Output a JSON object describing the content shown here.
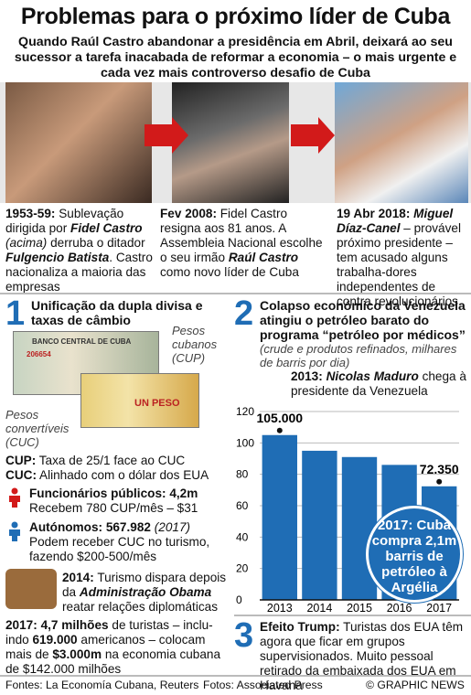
{
  "title": "Problemas para o próximo líder de Cuba",
  "subtitle": "Quando Raúl Castro abandonar a presidência em Abril, deixará ao seu sucessor a tarefa inacabada de reformar a economia – o mais urgente e cada vez mais controverso desafio de Cuba",
  "timeline": [
    {
      "date": "1953-59:",
      "parts": [
        "Sublevação dirigida por ",
        "Fidel Castro",
        " ",
        "(acima)",
        " derruba o ditador ",
        "Fulgencio Batista",
        ". Castro nacionaliza a maioria das empresas"
      ]
    },
    {
      "date": "Fev 2008:",
      "parts": [
        "Fidel Castro resigna aos 81 anos. A Assembleia Nacional escolhe o seu irmão ",
        "Raúl Castro",
        " como novo líder de Cuba"
      ]
    },
    {
      "date": "19 Abr 2018:",
      "parts": [
        "Miguel Díaz-Canel",
        " – provável próximo presidente – tem acusado alguns trabalha-dores independentes de contra revolucionários"
      ]
    }
  ],
  "section1": {
    "number": "1",
    "title": "Unificação da dupla divisa e taxas de câmbio",
    "label_cup": "Pesos cubanos (CUP)",
    "label_cuc": "Pesos convertíveis (CUC)",
    "bill1_text": "BANCO CENTRAL DE CUBA",
    "bill1_serial": "206654",
    "bill2_text": "UN PESO",
    "cup_key": "CUP:",
    "cup_val": "Taxa de 25/1 face ao CUC",
    "cuc_key": "CUC:",
    "cuc_val": "Alinhado com o dólar dos EUA",
    "workers1_title": "Funcionários públicos: 4,2m",
    "workers1_text": "Recebem 780 CUP/mês – $31",
    "workers2_title": "Autónomos: 567.982",
    "workers2_year": "(2017)",
    "workers2_text": "Podem receber CUC no turismo, fazendo $200-500/mês",
    "tourism_date": "2014:",
    "tourism_text1": "Turismo dispara depois da ",
    "tourism_admin": "Administração Obama",
    "tourism_text2": "reatar relações diplomáticas",
    "tourists_date": "2017:",
    "tourists_text": [
      "4,7 milhões",
      " de turistas – inclu-indo ",
      "619.000",
      " americanos – colocam mais de ",
      "$3.000m",
      " na economia cubana de $142.000 milhões"
    ]
  },
  "section2": {
    "number": "2",
    "title": "Colapso económico da Venezuela atingiu o petróleo barato do programa “petróleo por médicos”",
    "note": "(crude e produtos refinados, milhares de barris por dia)",
    "annotation_date": "2013:",
    "annotation_name": "Nicolas Maduro",
    "annotation_text": "chega à presidente da Venezuela",
    "badge": "2017: Cuba compra 2,1m barris de petróleo à Argélia"
  },
  "chart_data": {
    "type": "bar",
    "categories": [
      "2013",
      "2014",
      "2015",
      "2016",
      "2017"
    ],
    "values": [
      105000,
      95000,
      91000,
      86000,
      72350
    ],
    "labels": [
      "105.000",
      "",
      "",
      "",
      "72.350"
    ],
    "ylim": [
      0,
      120
    ],
    "yticks": [
      "0",
      "20",
      "40",
      "60",
      "80",
      "100",
      "120"
    ],
    "color": "#1f6db5"
  },
  "section3": {
    "number": "3",
    "title": "Efeito Trump:",
    "text": " Turistas dos EUA têm agora que ficar em grupos supervisionados. Muito pessoal retirado da embaixada dos EUA em Havana"
  },
  "footer": {
    "sources": "Fontes: La Economía Cubana, Reuters",
    "photos": "Fotos: Associated Press",
    "credit": "© GRAPHIC NEWS"
  },
  "colors": {
    "accent_red": "#d21a1a",
    "accent_blue": "#1f6db5"
  }
}
